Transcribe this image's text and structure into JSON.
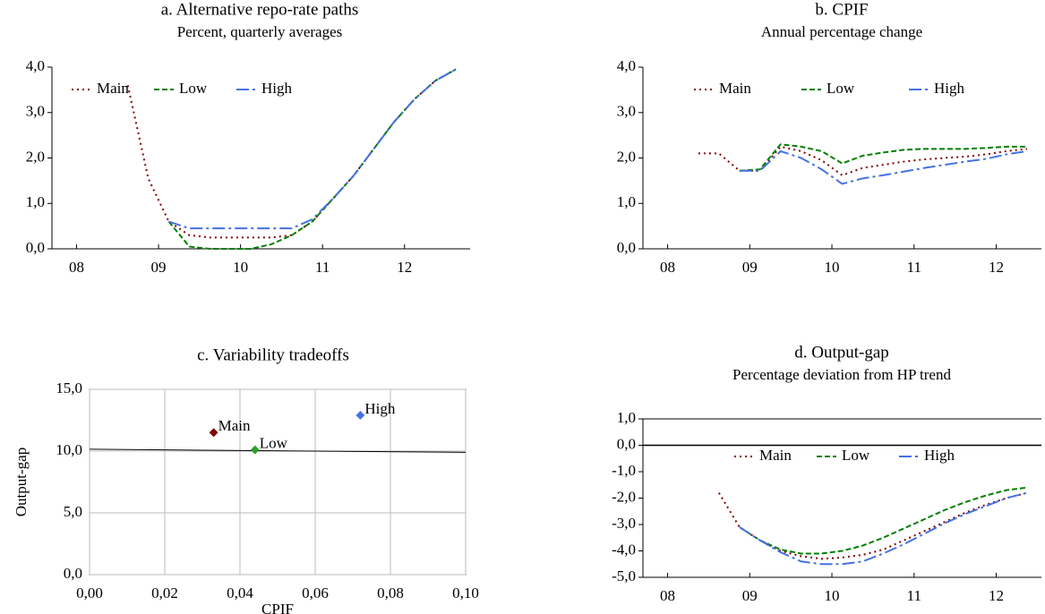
{
  "chart_data": [
    {
      "type": "line",
      "title": "a. Alternative repo-rate paths",
      "subtitle": "Percent, quarterly averages",
      "x": [
        8.625,
        8.875,
        9.125,
        9.375,
        9.625,
        9.875,
        10.125,
        10.375,
        10.625,
        10.875,
        11.125,
        11.375,
        11.625,
        11.875,
        12.125,
        12.375,
        12.625
      ],
      "series": [
        {
          "name": "Main",
          "color": "#800000",
          "values": [
            3.6,
            1.55,
            0.6,
            0.3,
            0.25,
            0.25,
            0.25,
            0.25,
            0.3,
            0.6,
            1.1,
            1.6,
            2.2,
            2.8,
            3.3,
            3.7,
            3.95
          ]
        },
        {
          "name": "Low",
          "color": "#008000",
          "values": [
            null,
            null,
            0.6,
            0.05,
            0,
            0,
            0,
            0.1,
            0.3,
            0.6,
            1.1,
            1.6,
            2.2,
            2.8,
            3.3,
            3.7,
            3.95
          ]
        },
        {
          "name": "High",
          "color": "#4472e0",
          "values": [
            null,
            null,
            0.6,
            0.45,
            0.45,
            0.45,
            0.45,
            0.45,
            0.45,
            0.65,
            1.1,
            1.6,
            2.2,
            2.8,
            3.3,
            3.7,
            3.95
          ]
        }
      ],
      "xlim": [
        7.7,
        12.8
      ],
      "xticks": [
        {
          "value": 8,
          "label": "08"
        },
        {
          "value": 9,
          "label": "09"
        },
        {
          "value": 10,
          "label": "10"
        },
        {
          "value": 11,
          "label": "11"
        },
        {
          "value": 12,
          "label": "12"
        }
      ],
      "ylim": [
        0,
        4
      ],
      "yticks": [
        {
          "value": 0,
          "label": "0,0"
        },
        {
          "value": 1,
          "label": "1,0"
        },
        {
          "value": 2,
          "label": "2,0"
        },
        {
          "value": 3,
          "label": "3,0"
        },
        {
          "value": 4,
          "label": "4,0"
        }
      ],
      "grid": false
    },
    {
      "type": "line",
      "title": "b. CPIF",
      "subtitle": "Annual percentage change",
      "x": [
        8.375,
        8.625,
        8.875,
        9.125,
        9.375,
        9.625,
        9.875,
        10.125,
        10.375,
        10.625,
        10.875,
        11.125,
        11.375,
        11.625,
        11.875,
        12.125,
        12.375
      ],
      "series": [
        {
          "name": "Main",
          "color": "#800000",
          "values": [
            2.1,
            2.1,
            1.72,
            1.72,
            2.25,
            2.15,
            1.95,
            1.62,
            1.78,
            1.85,
            1.92,
            1.97,
            2.0,
            2.03,
            2.08,
            2.15,
            2.2
          ]
        },
        {
          "name": "Low",
          "color": "#008000",
          "values": [
            null,
            null,
            1.72,
            1.75,
            2.3,
            2.25,
            2.15,
            1.88,
            2.05,
            2.12,
            2.18,
            2.2,
            2.2,
            2.2,
            2.22,
            2.25,
            2.25
          ]
        },
        {
          "name": "High",
          "color": "#4472e0",
          "values": [
            null,
            null,
            1.72,
            1.72,
            2.15,
            2.0,
            1.75,
            1.43,
            1.55,
            1.62,
            1.7,
            1.78,
            1.85,
            1.92,
            1.98,
            2.08,
            2.15
          ]
        }
      ],
      "xlim": [
        7.7,
        12.55
      ],
      "xticks": [
        {
          "value": 8,
          "label": "08"
        },
        {
          "value": 9,
          "label": "09"
        },
        {
          "value": 10,
          "label": "10"
        },
        {
          "value": 11,
          "label": "11"
        },
        {
          "value": 12,
          "label": "12"
        }
      ],
      "ylim": [
        0,
        4
      ],
      "yticks": [
        {
          "value": 0,
          "label": "0,0"
        },
        {
          "value": 1,
          "label": "1,0"
        },
        {
          "value": 2,
          "label": "2,0"
        },
        {
          "value": 3,
          "label": "3,0"
        },
        {
          "value": 4,
          "label": "4,0"
        }
      ],
      "grid": false
    },
    {
      "type": "scatter",
      "title": "c. Variability tradeoffs",
      "x_label": "CPIF",
      "y_label": "Output-gap",
      "series": [
        {
          "name": "Main",
          "color": "#800000",
          "x": [
            0.033
          ],
          "values": [
            11.5
          ]
        },
        {
          "name": "Low",
          "color": "#2e9e2e",
          "x": [
            0.044
          ],
          "values": [
            10.1
          ]
        },
        {
          "name": "High",
          "color": "#4472e0",
          "x": [
            0.072
          ],
          "values": [
            12.9
          ]
        }
      ],
      "trendline": {
        "x": [
          0,
          0.1
        ],
        "values": [
          10.15,
          9.9
        ]
      },
      "xlim": [
        0,
        0.1
      ],
      "xticks": [
        {
          "value": 0,
          "label": "0,00"
        },
        {
          "value": 0.02,
          "label": "0,02"
        },
        {
          "value": 0.04,
          "label": "0,04"
        },
        {
          "value": 0.06,
          "label": "0,06"
        },
        {
          "value": 0.08,
          "label": "0,08"
        },
        {
          "value": 0.1,
          "label": "0,10"
        }
      ],
      "ylim": [
        0,
        15
      ],
      "yticks": [
        {
          "value": 0,
          "label": "0,0"
        },
        {
          "value": 5,
          "label": "5,0"
        },
        {
          "value": 10,
          "label": "10,0"
        },
        {
          "value": 15,
          "label": "15,0"
        }
      ],
      "grid": true
    },
    {
      "type": "line",
      "title": "d. Output-gap",
      "subtitle": "Percentage deviation from HP trend",
      "x": [
        8.625,
        8.875,
        9.125,
        9.375,
        9.625,
        9.875,
        10.125,
        10.375,
        10.625,
        10.875,
        11.125,
        11.375,
        11.625,
        11.875,
        12.125,
        12.375
      ],
      "series": [
        {
          "name": "Main",
          "color": "#800000",
          "values": [
            -1.8,
            -3.1,
            -3.6,
            -4.0,
            -4.2,
            -4.3,
            -4.25,
            -4.15,
            -3.95,
            -3.6,
            -3.25,
            -2.9,
            -2.55,
            -2.25,
            -2.0,
            -1.8
          ]
        },
        {
          "name": "Low",
          "color": "#008000",
          "values": [
            null,
            -3.1,
            -3.6,
            -3.95,
            -4.1,
            -4.1,
            -4.0,
            -3.8,
            -3.5,
            -3.15,
            -2.8,
            -2.45,
            -2.15,
            -1.9,
            -1.7,
            -1.6
          ]
        },
        {
          "name": "High",
          "color": "#4472e0",
          "values": [
            null,
            -3.1,
            -3.6,
            -4.05,
            -4.4,
            -4.5,
            -4.5,
            -4.4,
            -4.1,
            -3.75,
            -3.35,
            -2.95,
            -2.6,
            -2.3,
            -2.0,
            -1.8
          ]
        }
      ],
      "xlim": [
        7.7,
        12.55
      ],
      "xticks": [
        {
          "value": 8,
          "label": "08"
        },
        {
          "value": 9,
          "label": "09"
        },
        {
          "value": 10,
          "label": "10"
        },
        {
          "value": 11,
          "label": "11"
        },
        {
          "value": 12,
          "label": "12"
        }
      ],
      "ylim": [
        -5,
        1
      ],
      "yticks": [
        {
          "value": -5,
          "label": "-5,0"
        },
        {
          "value": -4,
          "label": "-4,0"
        },
        {
          "value": -3,
          "label": "-3,0"
        },
        {
          "value": -2,
          "label": "-2,0"
        },
        {
          "value": -1,
          "label": "-1,0"
        },
        {
          "value": 0,
          "label": "0,0"
        },
        {
          "value": 1,
          "label": "1,0"
        }
      ],
      "grid": false
    }
  ]
}
